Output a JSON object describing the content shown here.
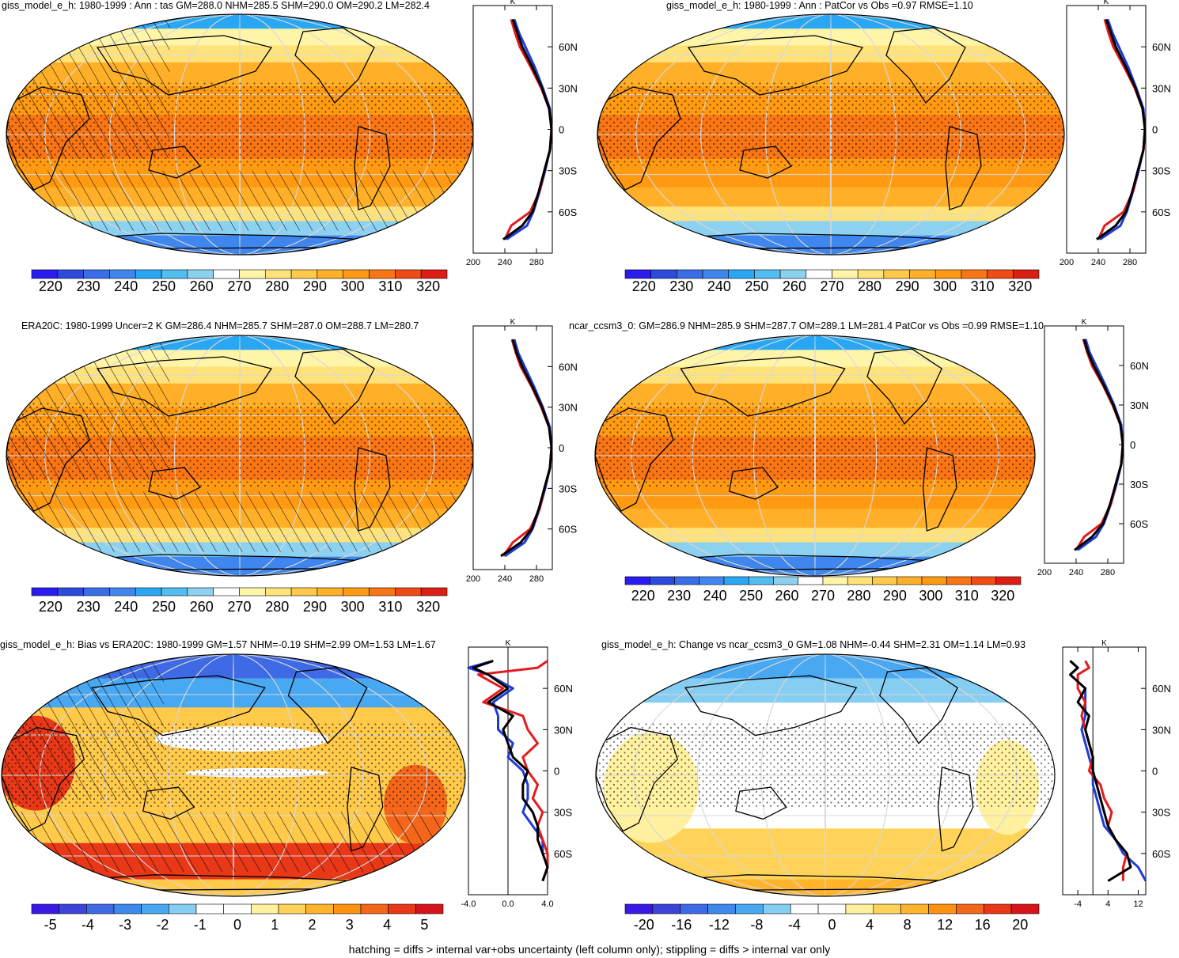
{
  "footer": "hatching = diffs > internal var+obs uncertainty (left column only); stippling = diffs > internal var only",
  "chart_data": [
    {
      "type": "heatmap",
      "title": "giss_model_e_h: 1980-1999 : Ann : tas GM=288.0 NHM=285.5 SHM=290.0 OM=290.2 LM=282.4",
      "field": "absolute",
      "colorbar": {
        "min": 215,
        "max": 325,
        "ticks": [
          "220",
          "230",
          "240",
          "250",
          "260",
          "270",
          "280",
          "290",
          "300",
          "310",
          "320"
        ]
      },
      "zonal_mean": {
        "xlabel": "K",
        "xlim": [
          200,
          300
        ],
        "xticks": [
          "200",
          "240",
          "280"
        ],
        "yticks": [
          "60N",
          "30N",
          "0",
          "30S",
          "60S"
        ],
        "lat": [
          80,
          70,
          60,
          45,
          30,
          15,
          0,
          -15,
          -30,
          -45,
          -60,
          -70,
          -80
        ],
        "series": [
          {
            "color": "#000000",
            "values": [
              250,
              256,
              262,
              275,
              287,
              296,
              299,
              297,
              290,
              283,
              275,
              262,
              238
            ]
          },
          {
            "color": "#e41a1c",
            "values": [
              248,
              253,
              259,
              273,
              286,
              296,
              299,
              297,
              290,
              284,
              272,
              248,
              240
            ]
          },
          {
            "color": "#1f3bd6",
            "values": [
              252,
              258,
              266,
              278,
              288,
              297,
              299,
              297,
              291,
              284,
              276,
              268,
              242
            ]
          }
        ]
      },
      "hatching": true,
      "stippling": true
    },
    {
      "type": "heatmap",
      "title": "giss_model_e_h: 1980-1999 : Ann : PatCor vs Obs =0.97 RMSE=1.10",
      "field": "absolute",
      "colorbar": {
        "min": 215,
        "max": 325,
        "ticks": [
          "220",
          "230",
          "240",
          "250",
          "260",
          "270",
          "280",
          "290",
          "300",
          "310",
          "320"
        ]
      },
      "zonal_mean": {
        "xlabel": "K",
        "xlim": [
          200,
          300
        ],
        "xticks": [
          "200",
          "240",
          "280"
        ],
        "yticks": [
          "60N",
          "30N",
          "0",
          "30S",
          "60S"
        ],
        "lat": [
          80,
          70,
          60,
          45,
          30,
          15,
          0,
          -15,
          -30,
          -45,
          -60,
          -70,
          -80
        ],
        "series": [
          {
            "color": "#000000",
            "values": [
              250,
              256,
              262,
              275,
              287,
              296,
              299,
              297,
              290,
              283,
              275,
              262,
              238
            ]
          },
          {
            "color": "#e41a1c",
            "values": [
              248,
              253,
              259,
              273,
              286,
              296,
              299,
              297,
              290,
              284,
              272,
              248,
              240
            ]
          },
          {
            "color": "#1f3bd6",
            "values": [
              252,
              258,
              266,
              278,
              288,
              297,
              299,
              297,
              291,
              284,
              276,
              268,
              242
            ]
          }
        ]
      },
      "hatching": false,
      "stippling": true
    },
    {
      "type": "heatmap",
      "title": "ERA20C: 1980-1999 Uncer=2 K GM=286.4 NHM=285.7 SHM=287.0 OM=288.7 LM=280.7",
      "field": "absolute",
      "colorbar": {
        "min": 215,
        "max": 325,
        "ticks": [
          "220",
          "230",
          "240",
          "250",
          "260",
          "270",
          "280",
          "290",
          "300",
          "310",
          "320"
        ]
      },
      "zonal_mean": {
        "xlabel": "K",
        "xlim": [
          200,
          300
        ],
        "xticks": [
          "200",
          "240",
          "280"
        ],
        "yticks": [
          "60N",
          "30N",
          "0",
          "30S",
          "60S"
        ],
        "lat": [
          80,
          70,
          60,
          45,
          30,
          15,
          0,
          -15,
          -30,
          -45,
          -60,
          -70,
          -80
        ],
        "series": [
          {
            "color": "#000000",
            "values": [
              250,
              255,
              262,
              275,
              287,
              296,
              299,
              297,
              290,
              283,
              274,
              260,
              235
            ]
          },
          {
            "color": "#e41a1c",
            "values": [
              249,
              254,
              260,
              274,
              286,
              296,
              299,
              297,
              290,
              284,
              272,
              250,
              238
            ]
          },
          {
            "color": "#1f3bd6",
            "values": [
              252,
              257,
              265,
              277,
              288,
              297,
              299,
              297,
              291,
              284,
              275,
              265,
              240
            ]
          }
        ]
      },
      "hatching": true,
      "stippling": true
    },
    {
      "type": "heatmap",
      "title": "ncar_ccsm3_0: GM=286.9 NHM=285.9 SHM=287.7 OM=289.1 LM=281.4 PatCor vs Obs =0.99 RMSE=1.10",
      "field": "absolute",
      "colorbar": {
        "min": 215,
        "max": 325,
        "ticks": [
          "220",
          "230",
          "240",
          "250",
          "260",
          "270",
          "280",
          "290",
          "300",
          "310",
          "320"
        ]
      },
      "zonal_mean": {
        "xlabel": "K",
        "xlim": [
          200,
          300
        ],
        "xticks": [
          "200",
          "240",
          "280"
        ],
        "yticks": [
          "60N",
          "30N",
          "0",
          "30S",
          "60S"
        ],
        "lat": [
          80,
          70,
          60,
          45,
          30,
          15,
          0,
          -15,
          -30,
          -45,
          -60,
          -70,
          -80
        ],
        "series": [
          {
            "color": "#000000",
            "values": [
              250,
              255,
              262,
              275,
              287,
              296,
              299,
              297,
              290,
              283,
              274,
              260,
              238
            ]
          },
          {
            "color": "#e41a1c",
            "values": [
              249,
              254,
              260,
              274,
              286,
              296,
              299,
              297,
              290,
              284,
              272,
              250,
              240
            ]
          },
          {
            "color": "#1f3bd6",
            "values": [
              252,
              257,
              265,
              277,
              288,
              297,
              299,
              297,
              291,
              284,
              275,
              265,
              242
            ]
          }
        ]
      },
      "hatching": false,
      "stippling": true
    },
    {
      "type": "heatmap",
      "title": "giss_model_e_h: Bias vs ERA20C: 1980-1999 GM=1.57 NHM=-0.19 SHM=2.99 OM=1.53 LM=1.67",
      "field": "bias",
      "colorbar": {
        "min": -5.5,
        "max": 5.5,
        "ticks": [
          "-5",
          "-4",
          "-3",
          "-2",
          "-1",
          "0",
          "1",
          "2",
          "3",
          "4",
          "5"
        ]
      },
      "zonal_mean": {
        "xlabel": "K",
        "xlim": [
          -4,
          4
        ],
        "xticks": [
          "-4.0",
          "0.0",
          "4.0"
        ],
        "yticks": [
          "60N",
          "30N",
          "0",
          "30S",
          "60S"
        ],
        "lat": [
          80,
          75,
          70,
          60,
          50,
          40,
          30,
          20,
          10,
          0,
          -10,
          -20,
          -30,
          -40,
          -50,
          -60,
          -70,
          -80
        ],
        "series": [
          {
            "color": "#000000",
            "values": [
              -1.5,
              -3.5,
              -2.0,
              0.0,
              -2.0,
              0.5,
              -0.5,
              0.0,
              0.5,
              2.0,
              1.5,
              1.5,
              2.5,
              3.0,
              3.0,
              3.5,
              4.0,
              3.5
            ]
          },
          {
            "color": "#e41a1c",
            "values": [
              4.0,
              3.0,
              -3.0,
              -0.5,
              -2.5,
              1.5,
              2.0,
              3.0,
              1.5,
              2.0,
              3.0,
              2.5,
              3.5,
              3.0,
              3.5,
              4.0,
              4.0,
              3.5
            ]
          },
          {
            "color": "#1f3bd6",
            "values": [
              -1.5,
              -4.0,
              -2.0,
              0.5,
              -1.5,
              -1.0,
              -1.0,
              0.5,
              0.0,
              1.5,
              2.0,
              2.0,
              1.5,
              2.5,
              3.5,
              3.5,
              4.0,
              3.5
            ]
          }
        ]
      },
      "hatching": true,
      "stippling": true
    },
    {
      "type": "heatmap",
      "title": "giss_model_e_h: Change vs ncar_ccsm3_0 GM=1.08 NHM=-0.44 SHM=2.31 OM=1.14 LM=0.93",
      "field": "change",
      "colorbar": {
        "min": -22,
        "max": 22,
        "ticks": [
          "-20",
          "-16",
          "-12",
          "-8",
          "-4",
          "0",
          "4",
          "8",
          "12",
          "16",
          "20"
        ]
      },
      "zonal_mean": {
        "xlabel": "K",
        "xlim": [
          -8,
          14
        ],
        "xticks": [
          "-4",
          "4",
          "12"
        ],
        "yticks": [
          "60N",
          "30N",
          "0",
          "30S",
          "60S"
        ],
        "lat": [
          80,
          75,
          70,
          60,
          50,
          40,
          30,
          20,
          10,
          0,
          -10,
          -20,
          -30,
          -40,
          -50,
          -60,
          -70,
          -80
        ],
        "series": [
          {
            "color": "#000000",
            "values": [
              -6,
              -4,
              -6,
              -2,
              -4,
              -1,
              -2,
              -1,
              0,
              0,
              1,
              2,
              3,
              4,
              6,
              9,
              10,
              4
            ]
          },
          {
            "color": "#e41a1c",
            "values": [
              -2,
              -1,
              -4,
              -4,
              -2,
              -3,
              -2,
              -1,
              0,
              -1,
              2,
              3,
              5,
              4,
              6,
              9,
              8,
              8
            ]
          },
          {
            "color": "#1f3bd6",
            "values": [
              -6,
              -4,
              -6,
              -2,
              -2,
              -2,
              -3,
              -2,
              -1,
              0,
              0,
              1,
              2,
              3,
              6,
              8,
              12,
              14
            ]
          }
        ]
      },
      "hatching": false,
      "stippling": true
    }
  ]
}
